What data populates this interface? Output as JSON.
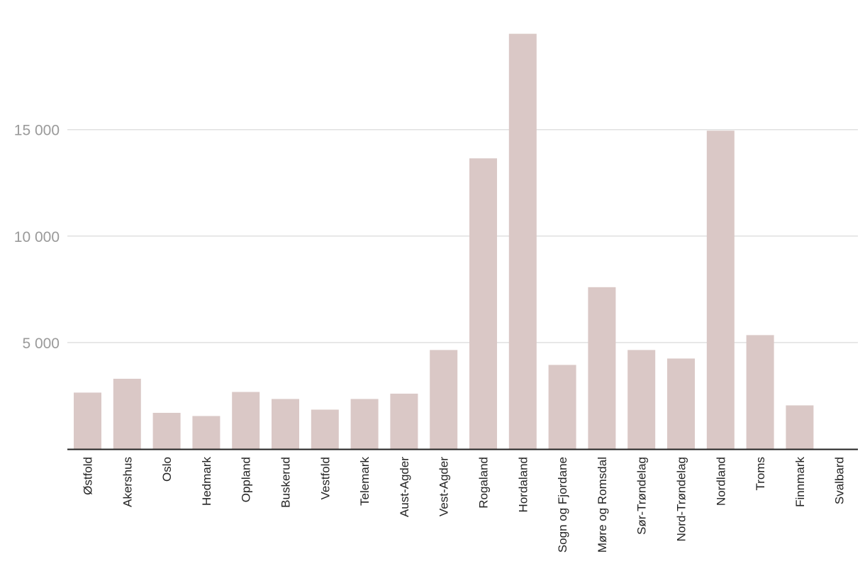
{
  "chart_data": {
    "type": "bar",
    "title": "",
    "xlabel": "",
    "ylabel": "",
    "categories": [
      "Østfold",
      "Akershus",
      "Oslo",
      "Hedmark",
      "Oppland",
      "Buskerud",
      "Vestfold",
      "Telemark",
      "Aust-Agder",
      "Vest-Agder",
      "Rogaland",
      "Hordaland",
      "Sogn og Fjordane",
      "Møre og Romsdal",
      "Sør-Trøndelag",
      "Nord-Trøndelag",
      "Nordland",
      "Troms",
      "Finnmark",
      "Svalbard"
    ],
    "values": [
      2650,
      3300,
      1700,
      1550,
      2680,
      2350,
      1850,
      2350,
      2600,
      4650,
      13650,
      19500,
      3950,
      7600,
      4650,
      4250,
      14950,
      5350,
      2050,
      0
    ],
    "ylim": [
      0,
      20000
    ],
    "yticks": [
      5000,
      10000,
      15000
    ],
    "ytick_labels": [
      "5 000",
      "10 000",
      "15 000"
    ],
    "grid": true,
    "legend": "none",
    "colors": {
      "bar": "#dac8c6",
      "grid": "#e0e0e0",
      "axis": "#222222",
      "tick_text": "#9a9a9a",
      "category_text": "#222222"
    }
  }
}
